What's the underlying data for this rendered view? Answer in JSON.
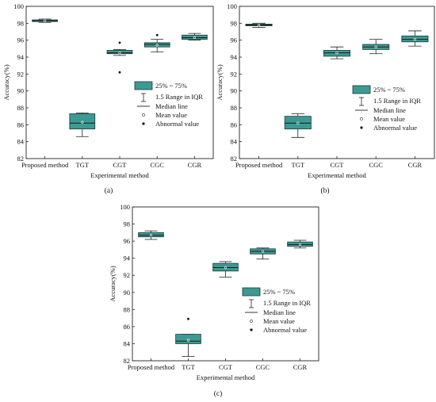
{
  "chart_data": [
    {
      "type": "box",
      "panel_label": "(a)",
      "xlabel": "Experimental method",
      "ylabel": "Accuracy(%)",
      "ylim": [
        82,
        100
      ],
      "yticks": [
        82,
        84,
        86,
        88,
        90,
        92,
        94,
        96,
        98,
        100
      ],
      "categories": [
        "Proposed method",
        "TGT",
        "CGT",
        "CGC",
        "CGR"
      ],
      "boxes": [
        {
          "whisker_low": 98.1,
          "q1": 98.2,
          "median": 98.3,
          "q3": 98.4,
          "whisker_high": 98.5,
          "mean": 98.3,
          "outliers": []
        },
        {
          "whisker_low": 84.6,
          "q1": 85.5,
          "median": 86.2,
          "q3": 87.3,
          "whisker_high": 87.4,
          "mean": 86.3,
          "outliers": []
        },
        {
          "whisker_low": 94.2,
          "q1": 94.4,
          "median": 94.5,
          "q3": 94.8,
          "whisker_high": 94.9,
          "mean": 94.5,
          "outliers": [
            95.7,
            92.2
          ]
        },
        {
          "whisker_low": 94.6,
          "q1": 95.2,
          "median": 95.5,
          "q3": 95.7,
          "whisker_high": 96.1,
          "mean": 95.4,
          "outliers": [
            96.6
          ]
        },
        {
          "whisker_low": 96.0,
          "q1": 96.1,
          "median": 96.3,
          "q3": 96.6,
          "whisker_high": 96.8,
          "mean": 96.3,
          "outliers": []
        }
      ],
      "legend": [
        "25% ~ 75%",
        "1.5 Range in IQR",
        "Median line",
        "Mean value",
        "Abnormal value"
      ],
      "legend_position": "right",
      "colors": {
        "box_fill": "#3c9a93",
        "box_edge": "#1b3a38"
      }
    },
    {
      "type": "box",
      "panel_label": "(b)",
      "xlabel": "Experimental method",
      "ylabel": "Accuracy(%)",
      "ylim": [
        82,
        100
      ],
      "yticks": [
        82,
        84,
        86,
        88,
        90,
        92,
        94,
        96,
        98,
        100
      ],
      "categories": [
        "Proposed method",
        "TGT",
        "CGT",
        "CGC",
        "CGR"
      ],
      "boxes": [
        {
          "whisker_low": 97.5,
          "q1": 97.7,
          "median": 97.8,
          "q3": 97.9,
          "whisker_high": 98.0,
          "mean": 97.8,
          "outliers": []
        },
        {
          "whisker_low": 84.5,
          "q1": 85.5,
          "median": 86.2,
          "q3": 87.0,
          "whisker_high": 87.3,
          "mean": 86.2,
          "outliers": []
        },
        {
          "whisker_low": 93.8,
          "q1": 94.1,
          "median": 94.5,
          "q3": 94.8,
          "whisker_high": 95.2,
          "mean": 94.5,
          "outliers": []
        },
        {
          "whisker_low": 94.4,
          "q1": 94.9,
          "median": 95.2,
          "q3": 95.5,
          "whisker_high": 96.1,
          "mean": 95.2,
          "outliers": []
        },
        {
          "whisker_low": 95.3,
          "q1": 95.8,
          "median": 96.1,
          "q3": 96.5,
          "whisker_high": 97.1,
          "mean": 96.1,
          "outliers": []
        }
      ],
      "legend": [
        "25% ~ 75%",
        "1.5 Range in IQR",
        "Median line",
        "Mean value",
        "Abnormal value"
      ],
      "legend_position": "right",
      "colors": {
        "box_fill": "#3c9a93",
        "box_edge": "#1b3a38"
      }
    },
    {
      "type": "box",
      "panel_label": "(c)",
      "xlabel": "Experimental method",
      "ylabel": "Accuracy(%)",
      "ylim": [
        82,
        100
      ],
      "yticks": [
        82,
        84,
        86,
        88,
        90,
        92,
        94,
        96,
        98,
        100
      ],
      "categories": [
        "Proposed method",
        "TGT",
        "CGT",
        "CGC",
        "CGR"
      ],
      "boxes": [
        {
          "whisker_low": 96.2,
          "q1": 96.5,
          "median": 96.7,
          "q3": 97.0,
          "whisker_high": 97.2,
          "mean": 96.7,
          "outliers": []
        },
        {
          "whisker_low": 82.5,
          "q1": 84.0,
          "median": 84.3,
          "q3": 85.1,
          "whisker_high": 85.1,
          "mean": 84.4,
          "outliers": [
            86.9
          ]
        },
        {
          "whisker_low": 91.8,
          "q1": 92.5,
          "median": 92.9,
          "q3": 93.4,
          "whisker_high": 93.6,
          "mean": 92.9,
          "outliers": []
        },
        {
          "whisker_low": 93.9,
          "q1": 94.5,
          "median": 94.8,
          "q3": 95.1,
          "whisker_high": 95.2,
          "mean": 94.8,
          "outliers": []
        },
        {
          "whisker_low": 95.2,
          "q1": 95.4,
          "median": 95.6,
          "q3": 95.9,
          "whisker_high": 96.1,
          "mean": 95.6,
          "outliers": []
        }
      ],
      "legend": [
        "25% ~ 75%",
        "1.5 Range in IQR",
        "Median line",
        "Mean value",
        "Abnormal value"
      ],
      "legend_position": "left",
      "colors": {
        "box_fill": "#3c9a93",
        "box_edge": "#1b3a38"
      }
    }
  ]
}
